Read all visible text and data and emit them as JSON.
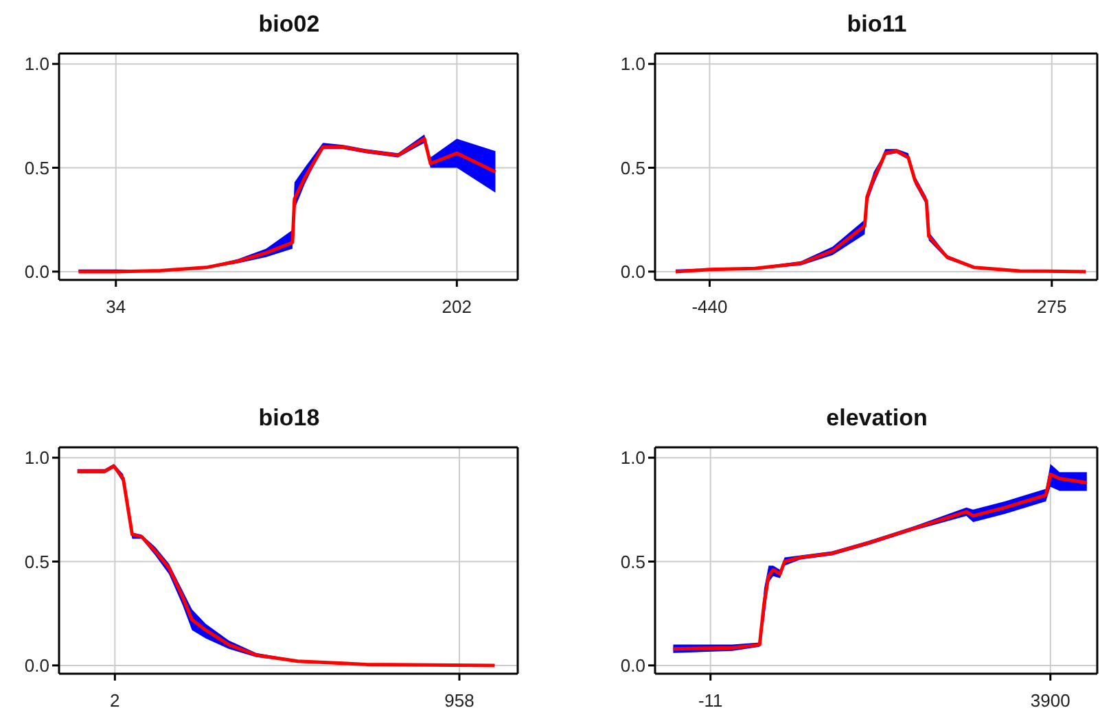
{
  "chart_data": [
    {
      "type": "line",
      "title": "bio02",
      "x": [
        15.6,
        34,
        56,
        78.5,
        94,
        108,
        121,
        122,
        127,
        130,
        136,
        146,
        157,
        173,
        186,
        189,
        202,
        221
      ],
      "series": [
        {
          "color": "#ff0000",
          "values": [
            0,
            0,
            0.005,
            0.02,
            0.05,
            0.09,
            0.14,
            0.35,
            0.45,
            0.5,
            0.6,
            0.6,
            0.58,
            0.56,
            0.64,
            0.52,
            0.57,
            0.48
          ],
          "lower": [
            0,
            0,
            0.003,
            0.015,
            0.04,
            0.07,
            0.11,
            0.3,
            0.42,
            0.48,
            0.59,
            0.59,
            0.57,
            0.55,
            0.62,
            0.5,
            0.5,
            0.38
          ],
          "upper": [
            0.01,
            0.01,
            0.008,
            0.025,
            0.06,
            0.11,
            0.2,
            0.43,
            0.5,
            0.54,
            0.62,
            0.61,
            0.59,
            0.57,
            0.66,
            0.55,
            0.64,
            0.58
          ]
        }
      ],
      "xlim": [
        6,
        232
      ],
      "xticks": [
        34,
        202
      ],
      "ylim": [
        -0.04,
        1.05
      ],
      "yticks": [
        {
          "value": 0,
          "label": "0.0"
        },
        {
          "value": 0.5,
          "label": "0.5"
        },
        {
          "value": 1,
          "label": "1.0"
        }
      ],
      "grid": true
    },
    {
      "type": "line",
      "title": "bio11",
      "x": [
        -511,
        -440,
        -345,
        -249,
        -183,
        -116,
        -111,
        -97,
        -82,
        -73,
        -49,
        -25,
        -11,
        13,
        18,
        56,
        113,
        208,
        346
      ],
      "series": [
        {
          "color": "#ff0000",
          "values": [
            0,
            0.01,
            0.015,
            0.04,
            0.1,
            0.22,
            0.36,
            0.45,
            0.52,
            0.57,
            0.58,
            0.55,
            0.44,
            0.34,
            0.17,
            0.07,
            0.02,
            0.003,
            0
          ],
          "lower": [
            0,
            0.005,
            0.01,
            0.03,
            0.08,
            0.18,
            0.33,
            0.42,
            0.5,
            0.56,
            0.57,
            0.54,
            0.42,
            0.32,
            0.15,
            0.06,
            0.015,
            0,
            0
          ],
          "upper": [
            0.01,
            0.015,
            0.02,
            0.05,
            0.12,
            0.25,
            0.38,
            0.48,
            0.54,
            0.59,
            0.59,
            0.57,
            0.46,
            0.36,
            0.19,
            0.08,
            0.025,
            0.006,
            0.005
          ]
        }
      ],
      "xlim": [
        -554,
        370
      ],
      "xticks": [
        -440,
        275
      ],
      "ylim": [
        -0.04,
        1.05
      ],
      "yticks": [
        {
          "value": 0,
          "label": "0.0"
        },
        {
          "value": 0.5,
          "label": "0.5"
        },
        {
          "value": 1,
          "label": "1.0"
        }
      ],
      "grid": true
    },
    {
      "type": "line",
      "title": "bio18",
      "x": [
        -102,
        -26,
        -1,
        25,
        50,
        76,
        114,
        152,
        190,
        216,
        254,
        318,
        394,
        509,
        700,
        1056
      ],
      "series": [
        {
          "color": "#ff0000",
          "values": [
            0.935,
            0.935,
            0.96,
            0.9,
            0.63,
            0.62,
            0.55,
            0.47,
            0.33,
            0.22,
            0.17,
            0.1,
            0.05,
            0.02,
            0.005,
            0
          ],
          "lower": [
            0.925,
            0.925,
            0.95,
            0.88,
            0.61,
            0.61,
            0.53,
            0.44,
            0.29,
            0.17,
            0.13,
            0.08,
            0.04,
            0.015,
            0.003,
            0
          ],
          "upper": [
            0.945,
            0.945,
            0.97,
            0.92,
            0.64,
            0.63,
            0.57,
            0.49,
            0.36,
            0.27,
            0.2,
            0.12,
            0.06,
            0.025,
            0.008,
            0.005
          ]
        }
      ],
      "xlim": [
        -153,
        1120
      ],
      "xticks": [
        2,
        958
      ],
      "ylim": [
        -0.04,
        1.05
      ],
      "yticks": [
        {
          "value": 0,
          "label": "0.0"
        },
        {
          "value": 0.5,
          "label": "0.5"
        },
        {
          "value": 1,
          "label": "1.0"
        }
      ],
      "grid": true
    },
    {
      "type": "line",
      "title": "elevation",
      "x": [
        -440,
        240,
        554,
        606,
        658,
        711,
        789,
        841,
        1024,
        1390,
        1809,
        2332,
        2933,
        3011,
        3377,
        3848,
        3900,
        4005,
        4319
      ],
      "series": [
        {
          "color": "#ff0000",
          "values": [
            0.08,
            0.085,
            0.1,
            0.3,
            0.43,
            0.46,
            0.44,
            0.5,
            0.52,
            0.54,
            0.59,
            0.66,
            0.74,
            0.72,
            0.76,
            0.82,
            0.92,
            0.9,
            0.88
          ],
          "lower": [
            0.06,
            0.07,
            0.09,
            0.22,
            0.4,
            0.43,
            0.42,
            0.48,
            0.51,
            0.53,
            0.58,
            0.65,
            0.72,
            0.69,
            0.73,
            0.79,
            0.86,
            0.84,
            0.84
          ],
          "upper": [
            0.1,
            0.1,
            0.11,
            0.37,
            0.48,
            0.48,
            0.46,
            0.52,
            0.53,
            0.55,
            0.6,
            0.67,
            0.76,
            0.75,
            0.79,
            0.85,
            0.97,
            0.93,
            0.93
          ]
        }
      ],
      "xlim": [
        -649,
        4439
      ],
      "xticks": [
        -11,
        3900
      ],
      "ylim": [
        -0.04,
        1.05
      ],
      "yticks": [
        {
          "value": 0,
          "label": "0.0"
        },
        {
          "value": 0.5,
          "label": "0.5"
        },
        {
          "value": 1,
          "label": "1.0"
        }
      ],
      "grid": true
    }
  ]
}
